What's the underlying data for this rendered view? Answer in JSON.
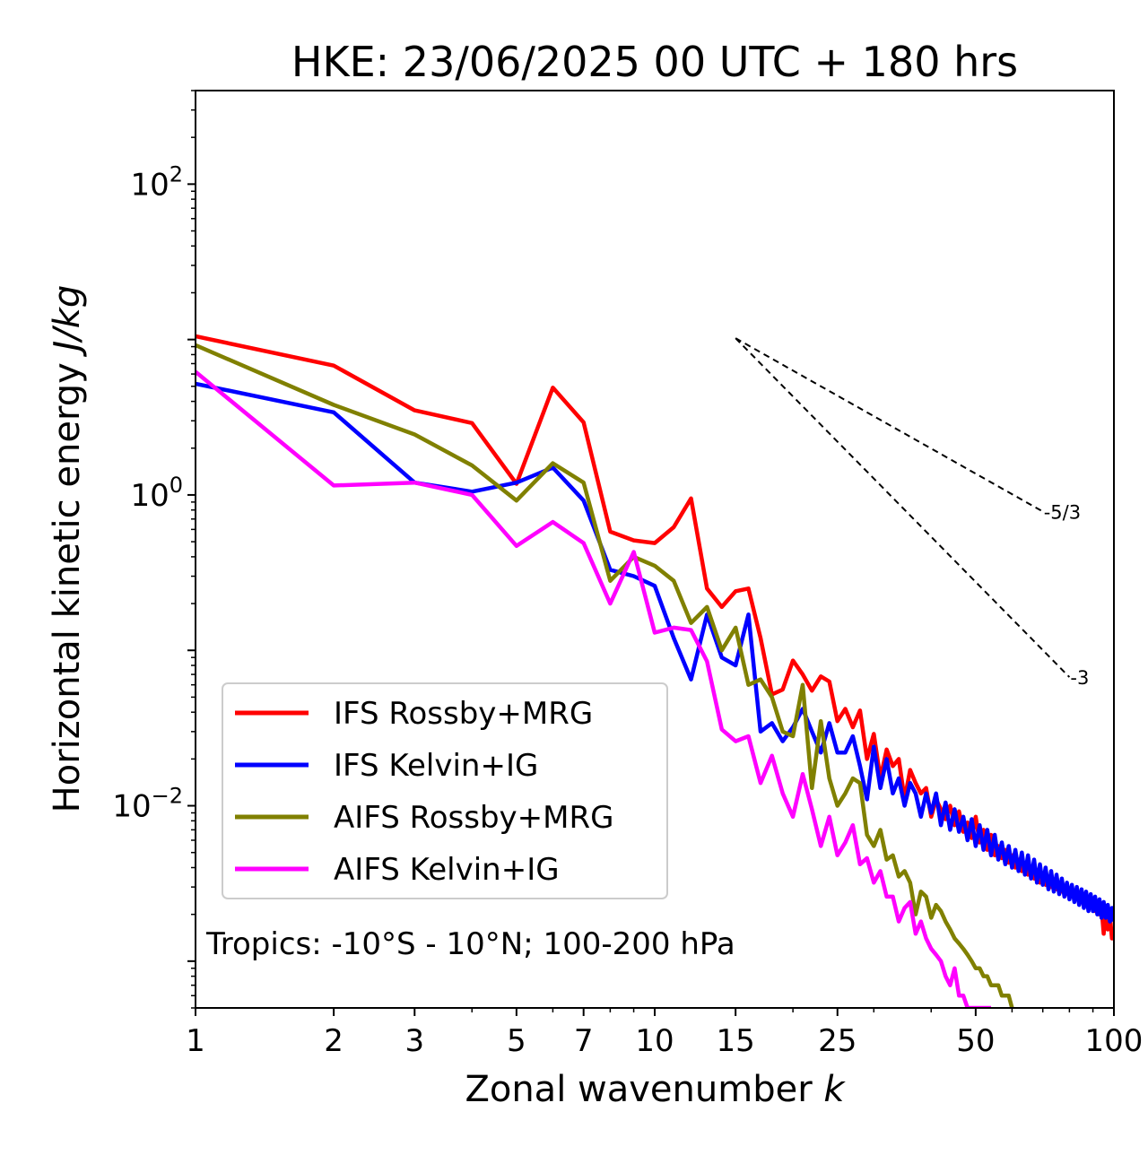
{
  "chart_data": {
    "type": "line",
    "title": "HKE: 23/06/2025 00 UTC + 180 hrs",
    "xlabel": "Zonal wavenumber k",
    "ylabel": "Horizontal kinetic energy J/kg",
    "xscale": "log",
    "yscale": "log",
    "xlim": [
      1,
      100
    ],
    "ylim": [
      0.0005,
      400
    ],
    "x_ticks": [
      1,
      2,
      3,
      5,
      7,
      10,
      15,
      25,
      50,
      100
    ],
    "x_tick_labels": [
      "1",
      "2",
      "3",
      "5",
      "7",
      "10",
      "15",
      "25",
      "50",
      "100"
    ],
    "y_ticks": [
      0.01,
      1,
      100
    ],
    "annotation": "Tropics: -10°S - 10°N; 100-200 hPa",
    "legend_position": "lower-left",
    "reference_slopes": [
      {
        "label": "-5/3",
        "slope": -1.667,
        "x_start": 15,
        "y_start": 10.2,
        "x_end": 70
      },
      {
        "label": "-3",
        "slope": -3,
        "x_start": 15,
        "y_start": 10.2,
        "x_end": 80
      }
    ],
    "series": [
      {
        "name": "IFS Rossby+MRG",
        "color": "#ff0000",
        "x": [
          1,
          2,
          3,
          4,
          5,
          6,
          7,
          8,
          9,
          10,
          11,
          12,
          13,
          14,
          15,
          16,
          17,
          18,
          19,
          20,
          21,
          22,
          23,
          24,
          25,
          26,
          27,
          28,
          29,
          30,
          31,
          32,
          33,
          34,
          35,
          36,
          37,
          38,
          39,
          40,
          41,
          42,
          43,
          44,
          45,
          46,
          47,
          48,
          49,
          50,
          51,
          52,
          53,
          54,
          55,
          56,
          57,
          58,
          59,
          60,
          61,
          62,
          63,
          64,
          65,
          66,
          67,
          68,
          69,
          70,
          71,
          72,
          73,
          74,
          75,
          76,
          77,
          78,
          79,
          80,
          81,
          82,
          83,
          84,
          85,
          86,
          87,
          88,
          89,
          90,
          91,
          92,
          93,
          94,
          95,
          96,
          97,
          98,
          99,
          100
        ],
        "values": [
          10.5,
          6.8,
          3.5,
          2.9,
          1.18,
          4.9,
          2.93,
          0.58,
          0.51,
          0.49,
          0.62,
          0.95,
          0.25,
          0.19,
          0.24,
          0.25,
          0.12,
          0.052,
          0.056,
          0.086,
          0.07,
          0.055,
          0.068,
          0.063,
          0.035,
          0.042,
          0.032,
          0.041,
          0.02,
          0.029,
          0.015,
          0.023,
          0.018,
          0.02,
          0.011,
          0.017,
          0.014,
          0.012,
          0.013,
          0.0085,
          0.011,
          0.0095,
          0.0082,
          0.01,
          0.0075,
          0.0092,
          0.0068,
          0.0078,
          0.0062,
          0.0085,
          0.0058,
          0.007,
          0.0052,
          0.0065,
          0.0048,
          0.0055,
          0.0046,
          0.0052,
          0.0043,
          0.0048,
          0.004,
          0.0045,
          0.0038,
          0.0042,
          0.0036,
          0.004,
          0.0034,
          0.0038,
          0.0032,
          0.0036,
          0.0031,
          0.0034,
          0.003,
          0.0032,
          0.0029,
          0.0031,
          0.0028,
          0.003,
          0.0027,
          0.0029,
          0.0026,
          0.0028,
          0.0025,
          0.0027,
          0.0024,
          0.0026,
          0.0023,
          0.0025,
          0.0022,
          0.0024,
          0.0021,
          0.0023,
          0.002,
          0.0022,
          0.0015,
          0.0021,
          0.0016,
          0.002,
          0.0014,
          0.0016
        ]
      },
      {
        "name": "IFS Kelvin+IG",
        "color": "#0000ff",
        "x": [
          1,
          2,
          3,
          4,
          5,
          6,
          7,
          8,
          9,
          10,
          11,
          12,
          13,
          14,
          15,
          16,
          17,
          18,
          19,
          20,
          21,
          22,
          23,
          24,
          25,
          26,
          27,
          28,
          29,
          30,
          31,
          32,
          33,
          34,
          35,
          36,
          37,
          38,
          39,
          40,
          41,
          42,
          43,
          44,
          45,
          46,
          47,
          48,
          49,
          50,
          51,
          52,
          53,
          54,
          55,
          56,
          57,
          58,
          59,
          60,
          61,
          62,
          63,
          64,
          65,
          66,
          67,
          68,
          69,
          70,
          71,
          72,
          73,
          74,
          75,
          76,
          77,
          78,
          79,
          80,
          81,
          82,
          83,
          84,
          85,
          86,
          87,
          88,
          89,
          90,
          91,
          92,
          93,
          94,
          95,
          96,
          97,
          98,
          99,
          100
        ],
        "values": [
          5.2,
          3.4,
          1.2,
          1.05,
          1.2,
          1.5,
          0.92,
          0.33,
          0.3,
          0.26,
          0.12,
          0.065,
          0.17,
          0.09,
          0.08,
          0.17,
          0.03,
          0.034,
          0.026,
          0.032,
          0.042,
          0.03,
          0.022,
          0.034,
          0.022,
          0.022,
          0.028,
          0.018,
          0.011,
          0.024,
          0.013,
          0.02,
          0.012,
          0.015,
          0.01,
          0.014,
          0.012,
          0.0085,
          0.012,
          0.009,
          0.012,
          0.0075,
          0.0105,
          0.007,
          0.0095,
          0.0068,
          0.0085,
          0.006,
          0.0082,
          0.0055,
          0.0075,
          0.0052,
          0.007,
          0.0048,
          0.0065,
          0.0045,
          0.0058,
          0.0042,
          0.0055,
          0.004,
          0.0052,
          0.0038,
          0.005,
          0.0036,
          0.0048,
          0.0034,
          0.0045,
          0.0032,
          0.0042,
          0.0031,
          0.004,
          0.0029,
          0.0038,
          0.0028,
          0.0036,
          0.0027,
          0.0034,
          0.0026,
          0.0032,
          0.0025,
          0.0031,
          0.0024,
          0.003,
          0.0023,
          0.0029,
          0.0022,
          0.0028,
          0.0021,
          0.0027,
          0.0021,
          0.0026,
          0.002,
          0.0025,
          0.0019,
          0.0024,
          0.0019,
          0.0023,
          0.0018,
          0.0022,
          0.0018
        ]
      },
      {
        "name": "AIFS Rossby+MRG",
        "color": "#808000",
        "x": [
          1,
          2,
          3,
          4,
          5,
          6,
          7,
          8,
          9,
          10,
          11,
          12,
          13,
          14,
          15,
          16,
          17,
          18,
          19,
          20,
          21,
          22,
          23,
          24,
          25,
          26,
          27,
          28,
          29,
          30,
          31,
          32,
          33,
          34,
          35,
          36,
          37,
          38,
          39,
          40,
          41,
          42,
          43,
          44,
          45,
          46,
          47,
          48,
          49,
          50,
          51,
          52,
          53,
          54,
          55,
          56,
          57,
          58,
          59,
          60
        ],
        "values": [
          9.2,
          3.8,
          2.45,
          1.55,
          0.92,
          1.6,
          1.2,
          0.28,
          0.4,
          0.35,
          0.28,
          0.15,
          0.19,
          0.1,
          0.14,
          0.06,
          0.065,
          0.05,
          0.03,
          0.028,
          0.06,
          0.013,
          0.035,
          0.015,
          0.01,
          0.012,
          0.015,
          0.014,
          0.0065,
          0.0055,
          0.007,
          0.0045,
          0.0048,
          0.0035,
          0.0038,
          0.0032,
          0.002,
          0.0028,
          0.0026,
          0.0019,
          0.0023,
          0.0021,
          0.0018,
          0.0016,
          0.0014,
          0.0013,
          0.0012,
          0.0011,
          0.001,
          0.0009,
          0.0009,
          0.0008,
          0.0008,
          0.0007,
          0.0007,
          0.0007,
          0.0006,
          0.0006,
          0.0006,
          0.0005
        ]
      },
      {
        "name": "AIFS Kelvin+IG",
        "color": "#ff00ff",
        "x": [
          1,
          2,
          3,
          4,
          5,
          6,
          7,
          8,
          9,
          10,
          11,
          12,
          13,
          14,
          15,
          16,
          17,
          18,
          19,
          20,
          21,
          22,
          23,
          24,
          25,
          26,
          27,
          28,
          29,
          30,
          31,
          32,
          33,
          34,
          35,
          36,
          37,
          38,
          39,
          40,
          41,
          42,
          43,
          44,
          45,
          46,
          47,
          48,
          49,
          50,
          51,
          52,
          53,
          54
        ],
        "values": [
          6.2,
          1.15,
          1.2,
          1.0,
          0.47,
          0.67,
          0.49,
          0.2,
          0.43,
          0.13,
          0.14,
          0.135,
          0.085,
          0.031,
          0.026,
          0.028,
          0.014,
          0.021,
          0.012,
          0.0085,
          0.016,
          0.0095,
          0.0055,
          0.0085,
          0.0048,
          0.0058,
          0.0075,
          0.0042,
          0.0046,
          0.0032,
          0.0038,
          0.0026,
          0.0026,
          0.0018,
          0.0022,
          0.0024,
          0.0015,
          0.0018,
          0.0014,
          0.0012,
          0.0011,
          0.001,
          0.0008,
          0.0007,
          0.0009,
          0.0006,
          0.0006,
          0.0005,
          0.0005,
          0.0005,
          0.0005,
          0.0005,
          0.0005,
          0.0005
        ]
      }
    ]
  }
}
